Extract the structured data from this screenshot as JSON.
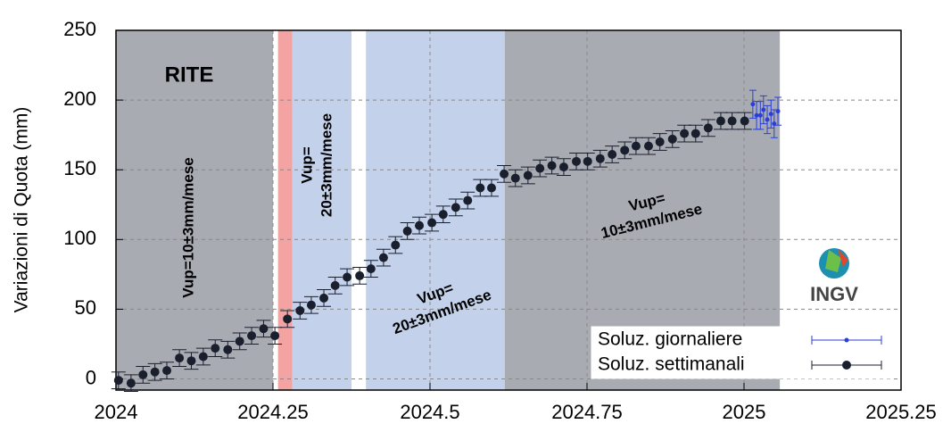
{
  "chart_data": {
    "type": "scatter",
    "y_label": "Variazioni di Quota (mm)",
    "xlim": [
      2024,
      2025.25
    ],
    "ylim": [
      -8,
      250
    ],
    "xticks": [
      2024,
      2024.25,
      2024.5,
      2024.75,
      2025,
      2025.25
    ],
    "yticks": [
      0,
      50,
      100,
      150,
      200,
      250
    ],
    "grid": true,
    "bands": [
      {
        "start": 2024,
        "end": 2024.25,
        "color": "#a9abb3"
      },
      {
        "start": 2024.258,
        "end": 2024.281,
        "color": "#f4a3a3"
      },
      {
        "start": 2024.281,
        "end": 2024.375,
        "color": "#c3d1ea"
      },
      {
        "start": 2024.398,
        "end": 2024.619,
        "color": "#c3d1ea"
      },
      {
        "start": 2024.619,
        "end": 2025.057,
        "color": "#a9abb3"
      }
    ],
    "annotations": [
      [
        "RITE"
      ],
      [
        "Vup=10±3mm/mese"
      ],
      [
        "Vup=",
        "20±3mm/mese"
      ],
      [
        "Vup=",
        "20±3mm/mese"
      ],
      [
        "Vup=",
        "10±3mm/mese"
      ]
    ],
    "logo_text": "INGV",
    "series": [
      {
        "name": "Soluz. giornaliere",
        "color": "#2a3fd6",
        "yerr": 10,
        "x": [
          2025.014,
          2025.02,
          2025.026,
          2025.031,
          2025.037,
          2025.043,
          2025.048,
          2025.054
        ],
        "values": [
          197,
          189,
          189,
          193,
          186,
          190,
          183,
          192
        ]
      },
      {
        "name": "Soluz. settimanali",
        "color": "#1a1f2e",
        "yerr": 6,
        "x": [
          2024.004,
          2024.024,
          2024.043,
          2024.062,
          2024.081,
          2024.101,
          2024.12,
          2024.139,
          2024.158,
          2024.178,
          2024.197,
          2024.216,
          2024.235,
          2024.253,
          2024.273,
          2024.293,
          2024.311,
          2024.331,
          2024.349,
          2024.368,
          2024.388,
          2024.406,
          2024.426,
          2024.445,
          2024.464,
          2024.483,
          2024.503,
          2024.521,
          2024.541,
          2024.56,
          2024.58,
          2024.598,
          2024.618,
          2024.636,
          2024.656,
          2024.675,
          2024.694,
          2024.713,
          2024.733,
          2024.751,
          2024.771,
          2024.79,
          2024.81,
          2024.828,
          2024.848,
          2024.866,
          2024.886,
          2024.905,
          2024.923,
          2024.943,
          2024.963,
          2024.981,
          2025.001
        ],
        "values": [
          -1,
          -3,
          3,
          5,
          6,
          15,
          13,
          16,
          22,
          21,
          27,
          31,
          36,
          31,
          43,
          49,
          53,
          58,
          67,
          73,
          74,
          79,
          87,
          96,
          106,
          110,
          112,
          118,
          123,
          128,
          137,
          137,
          147,
          144,
          146,
          151,
          153,
          152,
          156,
          156,
          158,
          161,
          164,
          167,
          167,
          170,
          172,
          176,
          176,
          180,
          185,
          185,
          185
        ]
      }
    ]
  }
}
